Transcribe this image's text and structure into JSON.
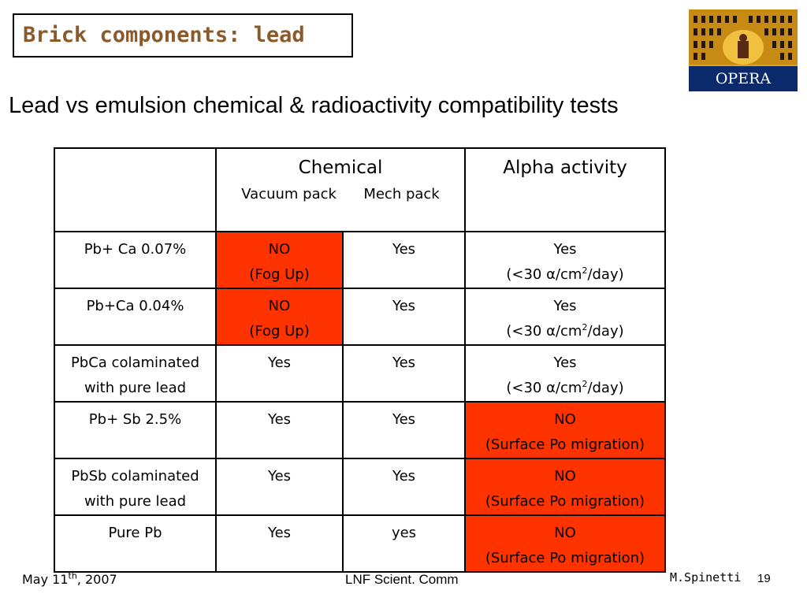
{
  "title": "Brick components: lead",
  "logo_text": "OPERA",
  "colors": {
    "title": "#8b5a2b",
    "fail_cell": "#ff3300",
    "logo_bg": "#0b2a6b",
    "logo_gold": "#e0a31c"
  },
  "subtitle": "Lead vs emulsion chemical & radioactivity compatibility tests",
  "table": {
    "header": {
      "chemical": "Chemical",
      "vacuum_pack": "Vacuum pack",
      "mech_pack": "Mech pack",
      "alpha_activity": "Alpha activity"
    },
    "rows": [
      {
        "sample": [
          "Pb+ Ca 0.07%",
          ""
        ],
        "vacuum": [
          "NO",
          "(Fog Up)"
        ],
        "vacuum_fail": true,
        "mech": "Yes",
        "alpha": [
          "Yes",
          "(<30 α/cm",
          "2",
          "/day)"
        ],
        "alpha_fail": false
      },
      {
        "sample": [
          "Pb+Ca 0.04%",
          ""
        ],
        "vacuum": [
          "NO",
          "(Fog Up)"
        ],
        "vacuum_fail": true,
        "mech": "Yes",
        "alpha": [
          "Yes",
          "(<30 α/cm",
          "2",
          "/day)"
        ],
        "alpha_fail": false
      },
      {
        "sample": [
          "PbCa colaminated",
          "with pure lead"
        ],
        "vacuum": [
          "Yes",
          ""
        ],
        "vacuum_fail": false,
        "mech": "Yes",
        "alpha": [
          "Yes",
          "(<30 α/cm",
          "2",
          "/day)"
        ],
        "alpha_fail": false
      },
      {
        "sample": [
          "Pb+ Sb 2.5%",
          ""
        ],
        "vacuum": [
          "Yes",
          ""
        ],
        "vacuum_fail": false,
        "mech": "Yes",
        "alpha": [
          "NO",
          "(Surface Po migration)",
          "",
          ""
        ],
        "alpha_fail": true
      },
      {
        "sample": [
          "PbSb colaminated",
          "with pure lead"
        ],
        "vacuum": [
          "Yes",
          ""
        ],
        "vacuum_fail": false,
        "mech": "Yes",
        "alpha": [
          "NO",
          "(Surface Po migration)",
          "",
          ""
        ],
        "alpha_fail": true
      },
      {
        "sample": [
          "Pure Pb",
          ""
        ],
        "vacuum": [
          "Yes",
          ""
        ],
        "vacuum_fail": false,
        "mech": "yes",
        "alpha": [
          "NO",
          "(Surface Po migration)",
          "",
          ""
        ],
        "alpha_fail": true
      }
    ]
  },
  "footer": {
    "date_prefix": "May 11",
    "date_sup": "th",
    "date_suffix": ", 2007",
    "center": "LNF Scient. Comm",
    "author": "M.Spinetti",
    "page": "19"
  }
}
